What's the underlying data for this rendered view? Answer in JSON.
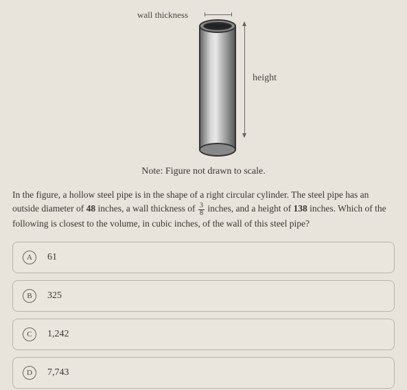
{
  "figure": {
    "wall_thickness_label": "wall thickness",
    "height_label": "height",
    "scale_note": "Note: Figure not drawn to scale."
  },
  "question": {
    "text_parts": {
      "p1": "In the figure, a hollow steel pipe is in the shape of a right circular cylinder. The steel pipe has an outside diameter of ",
      "diameter": "48",
      "p2": " inches, a wall thickness of ",
      "frac_num": "3",
      "frac_den": "8",
      "p3": " inches, and a height of ",
      "height": "138",
      "p4": " inches. Which of the following is closest to the volume, in cubic inches, of the wall of this steel pipe?"
    }
  },
  "options": [
    {
      "letter": "A",
      "text": "61"
    },
    {
      "letter": "B",
      "text": "325"
    },
    {
      "letter": "C",
      "text": "1,242"
    },
    {
      "letter": "D",
      "text": "7,743"
    }
  ],
  "style": {
    "background": "#e8e4dc",
    "text_color": "#3a3630",
    "border_color": "#b8b2a8",
    "option_bg": "#eae6de"
  }
}
